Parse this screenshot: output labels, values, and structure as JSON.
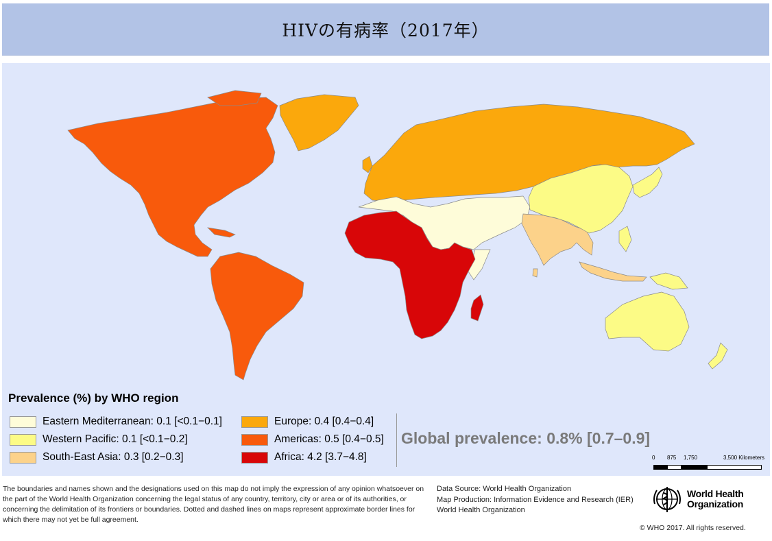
{
  "title": "HIVの有病率（2017年）",
  "legend": {
    "title": "Prevalence (%) by WHO region",
    "items": [
      {
        "label": "Eastern Mediterranean: 0.1 [<0.1−0.1]",
        "color": "#fefcd9"
      },
      {
        "label": "Western Pacific: 0.1 [<0.1−0.2]",
        "color": "#fcfb86"
      },
      {
        "label": "South-East Asia: 0.3 [0.2−0.3]",
        "color": "#fcd28a"
      },
      {
        "label": "Europe: 0.4 [0.4−0.4]",
        "color": "#fba80c"
      },
      {
        "label": "Americas: 0.5 [0.4−0.5]",
        "color": "#f85a0c"
      },
      {
        "label": "Africa: 4.2 [3.7−4.8]",
        "color": "#d80608"
      }
    ]
  },
  "global_prevalence": "Global prevalence: 0.8% [0.7–0.9]",
  "scale_bar": {
    "labels": [
      "0",
      "875",
      "1,750",
      "3,500 Kilometers"
    ]
  },
  "map": {
    "ocean_color": "#dfe7fb",
    "regions": [
      {
        "name": "Americas",
        "color": "#f85a0c"
      },
      {
        "name": "Europe",
        "color": "#fba80c"
      },
      {
        "name": "Africa",
        "color": "#d80608"
      },
      {
        "name": "Eastern Mediterranean",
        "color": "#fefcd9"
      },
      {
        "name": "South-East Asia",
        "color": "#fcd28a"
      },
      {
        "name": "Western Pacific",
        "color": "#fcfb86"
      }
    ]
  },
  "footer": {
    "disclaimer": "The boundaries and names shown and the designations used on this map do not imply the expression of any opinion whatsoever on the part of the World Health Organization concerning the legal status of any country, territory, city or area or of its authorities, or concerning the delimitation of its frontiers or boundaries. Dotted and dashed lines on maps represent approximate border lines for which there may not yet be full agreement.",
    "data_source": "Data Source: World Health Organization",
    "map_production": "Map Production: Information Evidence and Research (IER)",
    "organization": "World Health Organization",
    "logo_line1": "World Health",
    "logo_line2": "Organization",
    "copyright": "© WHO 2017. All rights reserved."
  }
}
